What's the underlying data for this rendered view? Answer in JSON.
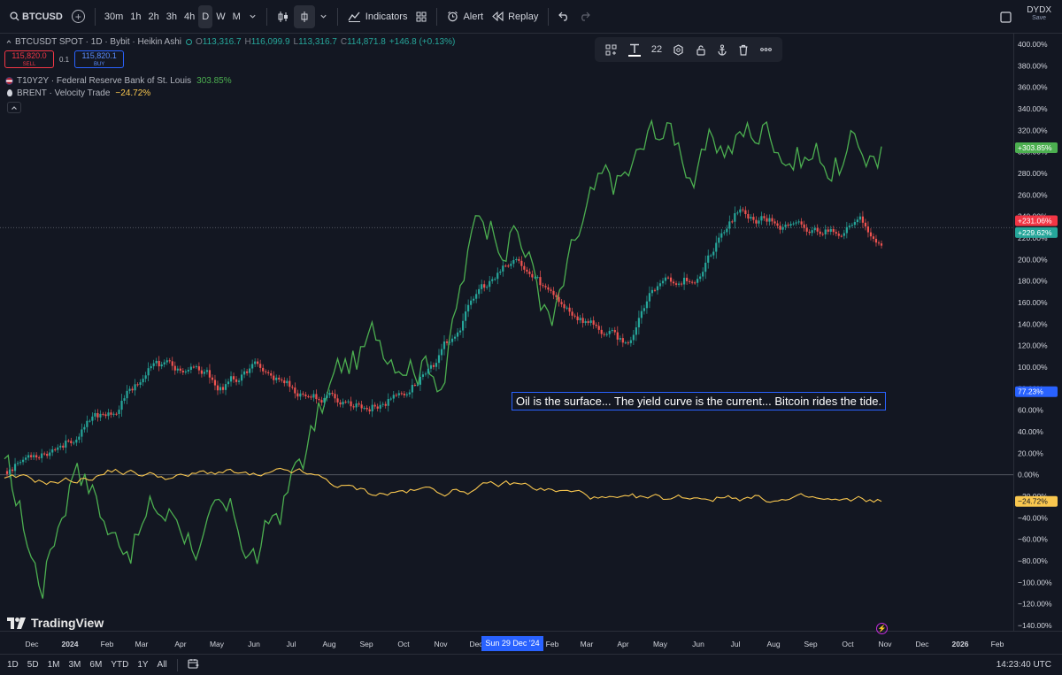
{
  "toolbar": {
    "symbol": "BTCUSD",
    "intervals": [
      "30m",
      "1h",
      "2h",
      "3h",
      "4h",
      "D",
      "W",
      "M"
    ],
    "active_interval": "D",
    "indicators_label": "Indicators",
    "alert_label": "Alert",
    "replay_label": "Replay",
    "layout_name": "DYDX",
    "save_label": "Save"
  },
  "legend": {
    "main_title": "BTCUSDT SPOT · 1D · Bybit · Heikin Ashi",
    "o_label": "O",
    "o_value": "113,316.7",
    "h_label": "H",
    "h_value": "116,099.9",
    "l_label": "L",
    "l_value": "113,316.7",
    "c_label": "C",
    "c_value": "114,871.8",
    "change": "+146.8 (+0.13%)",
    "sell_price": "115,820.0",
    "sell_label": "SELL",
    "qty": "0.1",
    "buy_price": "115,820.1",
    "buy_label": "BUY",
    "series2_name": "T10Y2Y · Federal Reserve Bank of St. Louis",
    "series2_value": "303.85%",
    "series3_name": "BRENT · Velocity Trade",
    "series3_value": "−24.72%"
  },
  "floating_toolbar": {
    "font_size": "22"
  },
  "annotation_text": "Oil is the surface... The yield curve is the current... Bitcoin rides the tide.",
  "branding": "TradingView",
  "bottom": {
    "ranges": [
      "1D",
      "5D",
      "1M",
      "3M",
      "6M",
      "YTD",
      "1Y",
      "All"
    ],
    "clock": "14:23:40 UTC"
  },
  "crosshair_date": "Sun 29 Dec '24",
  "colors": {
    "bg": "#131722",
    "up": "#26a69a",
    "down": "#ef5350",
    "t10y2y": "#4caf50",
    "brent": "#f9c74f",
    "accent": "#2962ff"
  },
  "chart_data": {
    "type": "line",
    "x_ticks": [
      "Dec",
      "2024",
      "Feb",
      "Mar",
      "Apr",
      "May",
      "Jun",
      "Jul",
      "Aug",
      "Sep",
      "Oct",
      "Nov",
      "Dec",
      "Feb",
      "Mar",
      "Apr",
      "May",
      "Jun",
      "Jul",
      "Aug",
      "Sep",
      "Oct",
      "Nov",
      "Dec",
      "2026",
      "Feb"
    ],
    "y_ticks": [
      "400.00%",
      "380.00%",
      "360.00%",
      "340.00%",
      "320.00%",
      "300.00%",
      "280.00%",
      "260.00%",
      "240.00%",
      "220.00%",
      "200.00%",
      "180.00%",
      "160.00%",
      "140.00%",
      "120.00%",
      "100.00%",
      "80.00%",
      "60.00%",
      "40.00%",
      "20.00%",
      "0.00%",
      "−20.00%",
      "−40.00%",
      "−60.00%",
      "−80.00%",
      "−100.00%",
      "−120.00%",
      "−140.00%"
    ],
    "ylim": [
      -140,
      400
    ],
    "y_unit": "%",
    "series": [
      {
        "name": "BTCUSDT SPOT",
        "style": "heikin-ashi",
        "x": [
          "2023-11",
          "2023-12",
          "2024-01",
          "2024-02",
          "2024-03",
          "2024-04",
          "2024-05",
          "2024-06",
          "2024-07",
          "2024-08",
          "2024-09",
          "2024-10",
          "2024-11",
          "2024-12",
          "2025-01",
          "2025-02",
          "2025-03",
          "2025-04",
          "2025-05",
          "2025-06",
          "2025-07",
          "2025-08",
          "2025-09",
          "2025-10",
          "2025-10-28"
        ],
        "values": [
          5,
          25,
          40,
          60,
          103,
          95,
          80,
          100,
          80,
          70,
          65,
          80,
          115,
          170,
          195,
          165,
          145,
          120,
          180,
          190,
          240,
          235,
          220,
          235,
          225
        ]
      },
      {
        "name": "T10Y2Y",
        "x": [
          "2023-11",
          "2023-12",
          "2024-01",
          "2024-02",
          "2024-03",
          "2024-04",
          "2024-05",
          "2024-06",
          "2024-07",
          "2024-08",
          "2024-09",
          "2024-10",
          "2024-11",
          "2024-12",
          "2025-01",
          "2025-02",
          "2025-03",
          "2025-04",
          "2025-05",
          "2025-06",
          "2025-07",
          "2025-08",
          "2025-09",
          "2025-10",
          "2025-10-28"
        ],
        "values": [
          0,
          -100,
          40,
          -50,
          -30,
          -40,
          -60,
          -80,
          0,
          80,
          110,
          140,
          120,
          240,
          250,
          140,
          230,
          260,
          320,
          290,
          310,
          330,
          310,
          300,
          305
        ]
      },
      {
        "name": "BRENT",
        "x": [
          "2023-11",
          "2023-12",
          "2024-01",
          "2024-02",
          "2024-03",
          "2024-04",
          "2024-05",
          "2024-06",
          "2024-07",
          "2024-08",
          "2024-09",
          "2024-10",
          "2024-11",
          "2024-12",
          "2025-01",
          "2025-02",
          "2025-03",
          "2025-04",
          "2025-05",
          "2025-06",
          "2025-07",
          "2025-08",
          "2025-09",
          "2025-10",
          "2025-10-28"
        ],
        "values": [
          -5,
          -8,
          -5,
          5,
          0,
          -2,
          3,
          -5,
          0,
          -10,
          -18,
          -15,
          -15,
          -12,
          -10,
          -15,
          -20,
          -28,
          -25,
          -20,
          -18,
          -22,
          -25,
          -28,
          -24.72
        ]
      }
    ],
    "last_value_labels": [
      "+303.85%",
      "+231.06%",
      "+229.62%",
      "77.23%",
      "−24.72%"
    ]
  }
}
